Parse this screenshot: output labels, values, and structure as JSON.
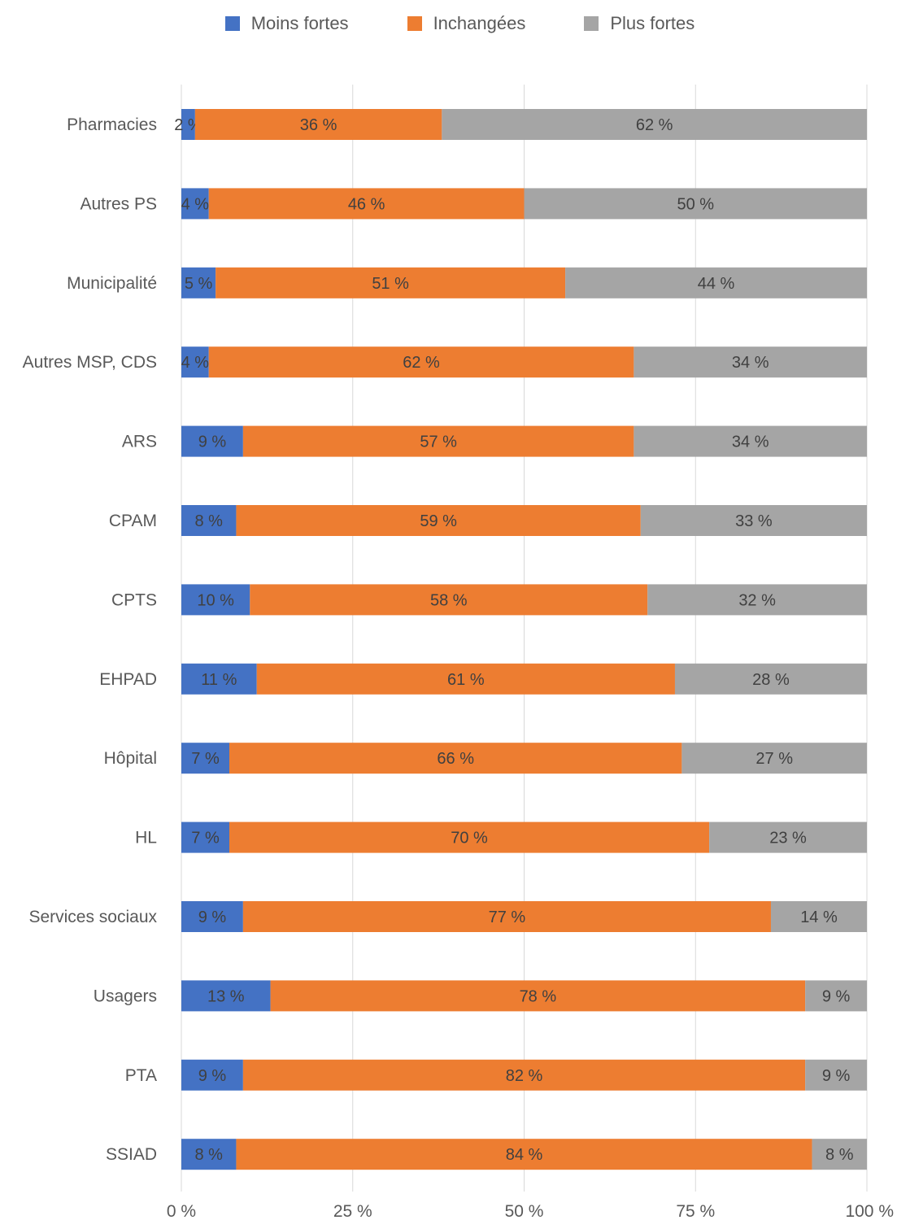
{
  "chart_data": {
    "type": "bar",
    "orientation": "horizontal",
    "stacked": "percent",
    "categories": [
      "Pharmacies",
      "Autres PS",
      "Municipalité",
      "Autres MSP, CDS",
      "ARS",
      "CPAM",
      "CPTS",
      "EHPAD",
      "Hôpital",
      "HL",
      "Services sociaux",
      "Usagers",
      "PTA",
      "SSIAD"
    ],
    "series": [
      {
        "name": "Moins fortes",
        "color": "#4472c4",
        "values": [
          2,
          4,
          5,
          4,
          9,
          8,
          10,
          11,
          7,
          7,
          9,
          13,
          9,
          8
        ]
      },
      {
        "name": "Inchangées",
        "color": "#ed7d31",
        "values": [
          36,
          46,
          51,
          62,
          57,
          59,
          58,
          61,
          66,
          70,
          77,
          78,
          82,
          84
        ]
      },
      {
        "name": "Plus fortes",
        "color": "#a5a5a5",
        "values": [
          62,
          50,
          44,
          34,
          34,
          33,
          32,
          28,
          27,
          23,
          14,
          9,
          9,
          8
        ]
      }
    ],
    "value_suffix": " %",
    "xlim": [
      0,
      100
    ],
    "xticks": [
      0,
      25,
      50,
      75,
      100
    ],
    "xtick_labels": [
      "0 %",
      "25 %",
      "50 %",
      "75 %",
      "100 %"
    ],
    "grid": "vertical",
    "legend_position": "top"
  }
}
